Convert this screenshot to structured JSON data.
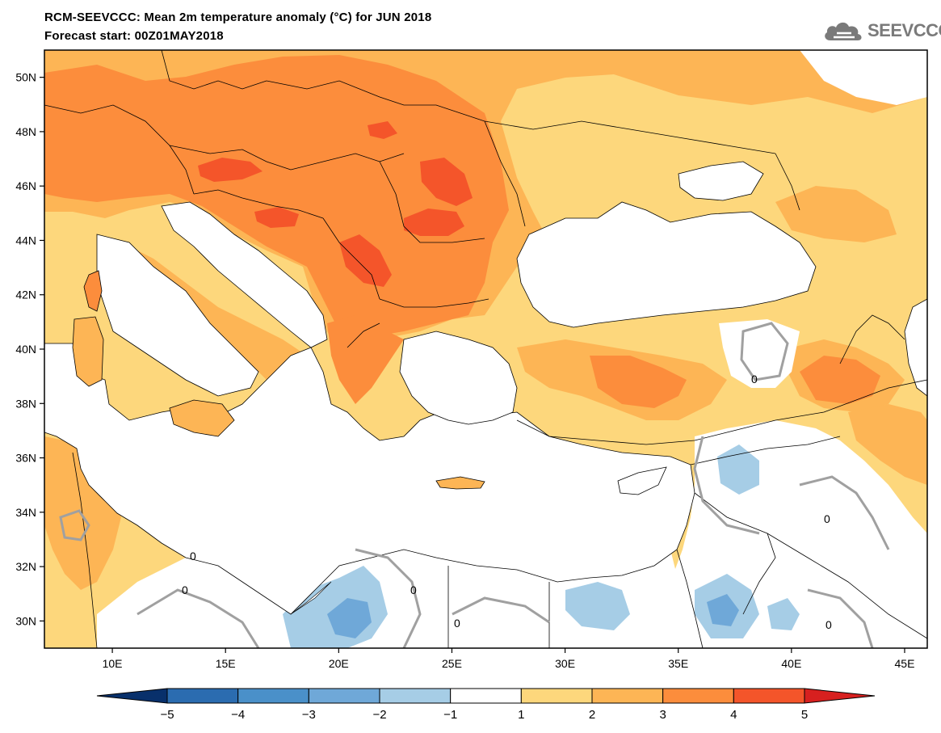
{
  "header": {
    "title_line1": "RCM-SEEVCCC: Mean 2m temperature anomaly (°C) for JUN 2018",
    "title_line2": "Forecast start: 00Z01MAY2018",
    "logo_text": "SEEVCCC",
    "logo_icon": "cloud-icon"
  },
  "map": {
    "lon_range": [
      7,
      46
    ],
    "lat_range": [
      29,
      51
    ],
    "lon_ticks": [
      "10E",
      "15E",
      "20E",
      "25E",
      "30E",
      "35E",
      "40E",
      "45E"
    ],
    "lat_ticks": [
      "30N",
      "32N",
      "34N",
      "36N",
      "38N",
      "40N",
      "42N",
      "44N",
      "46N",
      "48N",
      "50N"
    ],
    "zero_contour_label": "0"
  },
  "colorbar": {
    "labels": [
      "−5",
      "−4",
      "−3",
      "−2",
      "−1",
      "1",
      "2",
      "3",
      "4",
      "5"
    ],
    "colors": [
      "#08306b",
      "#2b6cb0",
      "#4a90c9",
      "#6fa8d8",
      "#a6cde6",
      "#ffffff",
      "#fdd77c",
      "#fdb555",
      "#fc8d3c",
      "#f4552a",
      "#d7201f"
    ]
  }
}
